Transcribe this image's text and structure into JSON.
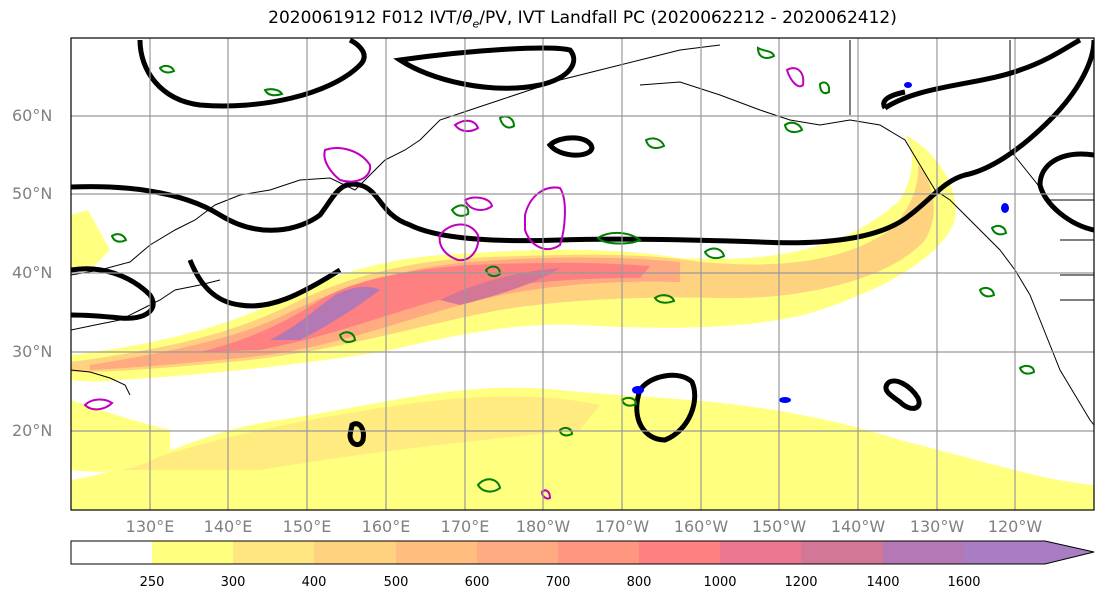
{
  "title": "2020061912 F012 IVT/θe/PV, IVT Landfall PC (2020062212 - 2020062412)",
  "lat_labels": [
    "60°N",
    "50°N",
    "40°N",
    "30°N",
    "20°N"
  ],
  "lon_labels": [
    "130°E",
    "140°E",
    "150°E",
    "160°E",
    "170°E",
    "180°W",
    "170°W",
    "160°W",
    "150°W",
    "140°W",
    "130°W",
    "120°W"
  ],
  "colorbar": {
    "ticks": [
      "250",
      "300",
      "400",
      "500",
      "600",
      "700",
      "800",
      "1000",
      "1200",
      "1400",
      "1600"
    ],
    "colors": [
      "#ffffff",
      "#ffff80",
      "#ffe680",
      "#ffd280",
      "#ffbe80",
      "#ffaa80",
      "#ff9680",
      "#ff8080",
      "#eb7890",
      "#d27896",
      "#b478b4",
      "#a87dc3"
    ]
  },
  "colors": {
    "coast": "#000000",
    "contour_black": "#000000",
    "pv_magenta": "#c000c0",
    "theta_green": "#008000",
    "blue": "#0000ff"
  }
}
